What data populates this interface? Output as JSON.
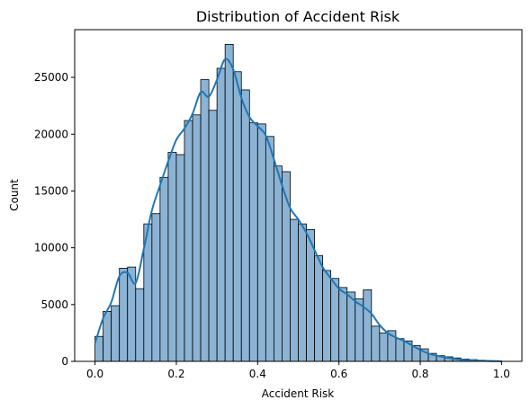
{
  "chart_data": {
    "type": "bar",
    "title": "Distribution of Accident Risk",
    "xlabel": "Accident Risk",
    "ylabel": "Count",
    "xlim": [
      -0.05,
      1.05
    ],
    "ylim": [
      0,
      29200
    ],
    "x_ticks": [
      0.0,
      0.2,
      0.4,
      0.6,
      0.8,
      1.0
    ],
    "x_tick_labels": [
      "0.0",
      "0.2",
      "0.4",
      "0.6",
      "0.8",
      "1.0"
    ],
    "y_ticks": [
      0,
      5000,
      10000,
      15000,
      20000,
      25000
    ],
    "y_tick_labels": [
      "0",
      "5000",
      "10000",
      "15000",
      "20000",
      "25000"
    ],
    "grid": false,
    "legend": "none",
    "bin_edges": [
      0.0,
      0.02,
      0.04,
      0.06,
      0.08,
      0.1,
      0.12,
      0.14,
      0.16,
      0.18,
      0.2,
      0.22,
      0.24,
      0.26,
      0.28,
      0.3,
      0.32,
      0.34,
      0.36,
      0.38,
      0.4,
      0.42,
      0.44,
      0.46,
      0.48,
      0.5,
      0.52,
      0.54,
      0.56,
      0.58,
      0.6,
      0.62,
      0.64,
      0.66,
      0.68,
      0.7,
      0.72,
      0.74,
      0.76,
      0.78,
      0.8,
      0.82,
      0.84,
      0.86,
      0.88,
      0.9,
      0.92,
      0.94,
      0.96,
      0.98,
      1.0
    ],
    "counts": [
      2200,
      4400,
      4900,
      8200,
      8300,
      6400,
      12100,
      13000,
      16200,
      18400,
      18200,
      21200,
      21700,
      24800,
      22100,
      25800,
      27900,
      25500,
      23900,
      21000,
      20900,
      19800,
      17200,
      16700,
      12500,
      12100,
      11600,
      9300,
      8000,
      7300,
      6500,
      6100,
      5500,
      6300,
      3100,
      2500,
      2700,
      2000,
      1800,
      1400,
      1100,
      700,
      500,
      400,
      300,
      200,
      150,
      100,
      60,
      30
    ],
    "kde": {
      "x": [
        0.0,
        0.02,
        0.04,
        0.06,
        0.08,
        0.1,
        0.12,
        0.14,
        0.16,
        0.18,
        0.2,
        0.22,
        0.24,
        0.26,
        0.28,
        0.3,
        0.32,
        0.34,
        0.36,
        0.38,
        0.4,
        0.42,
        0.44,
        0.46,
        0.48,
        0.5,
        0.52,
        0.54,
        0.56,
        0.58,
        0.6,
        0.62,
        0.64,
        0.66,
        0.68,
        0.7,
        0.72,
        0.74,
        0.76,
        0.78,
        0.8,
        0.82,
        0.84,
        0.86,
        0.88,
        0.9,
        0.92,
        0.94,
        0.96,
        0.98,
        1.0
      ],
      "y": [
        1600,
        3800,
        5200,
        7500,
        7800,
        6900,
        9900,
        13300,
        15500,
        17600,
        19500,
        20500,
        21800,
        23700,
        23300,
        24800,
        26600,
        25700,
        23200,
        21500,
        20700,
        19900,
        17800,
        15500,
        13500,
        12500,
        11300,
        9800,
        8300,
        7300,
        6400,
        5900,
        5300,
        4800,
        4200,
        3200,
        2500,
        2100,
        1800,
        1400,
        1000,
        700,
        500,
        350,
        250,
        150,
        100,
        60,
        40,
        20,
        10
      ]
    },
    "bar_color": "#8cb3d4",
    "bar_edge_color": "#000000",
    "line_color": "#1f77b4"
  }
}
